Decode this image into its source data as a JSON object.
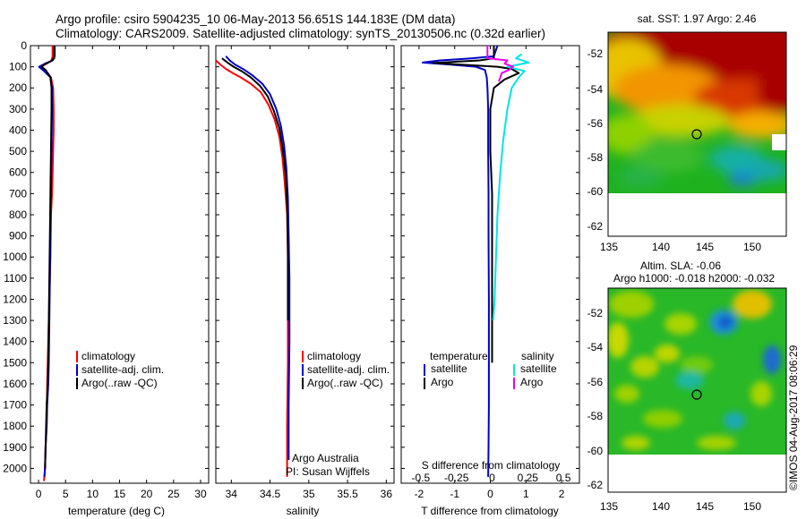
{
  "header": {
    "title_line1": "Argo profile: csiro 5904235_10 06-May-2013 56.651S 144.183E (DM data)",
    "title_line2": "Climatology: CARS2009. Satellite-adjusted climatology: synTS_20130506.nc (0.32d earlier)"
  },
  "chart_data": [
    {
      "id": "temperature",
      "type": "line",
      "xlabel": "temperature (deg C)",
      "ylabel": "",
      "xlim": [
        -1.5,
        31.5
      ],
      "ylim": [
        2070,
        0
      ],
      "xticks": [
        0,
        5,
        10,
        15,
        20,
        25,
        30
      ],
      "yticks": [
        0,
        100,
        200,
        300,
        400,
        500,
        600,
        700,
        800,
        900,
        1000,
        1100,
        1200,
        1300,
        1400,
        1500,
        1600,
        1700,
        1800,
        1900,
        2000
      ],
      "series": [
        {
          "name": "climatology",
          "color": "#ff0000",
          "x": [
            2.6,
            2.6,
            2.4,
            1.5,
            0.4,
            1.4,
            2.3,
            2.7,
            2.8,
            2.8,
            2.7,
            2.6,
            2.5,
            2.3,
            2.2,
            2.0,
            1.8,
            1.6,
            1.5,
            1.3,
            1.2,
            1.0
          ],
          "y": [
            0,
            50,
            70,
            85,
            100,
            120,
            150,
            200,
            300,
            400,
            500,
            600,
            700,
            800,
            1000,
            1200,
            1400,
            1600,
            1800,
            1900,
            2000,
            2060
          ]
        },
        {
          "name": "satellite-adj. clim.",
          "color": "#0000cc",
          "x": [
            3.0,
            3.0,
            2.6,
            1.2,
            0.1,
            1.0,
            2.2,
            2.5,
            2.5,
            2.4,
            2.3,
            2.2,
            2.1,
            2.0,
            1.9,
            1.8,
            1.6,
            1.5,
            1.3,
            1.2,
            1.1
          ],
          "y": [
            0,
            50,
            70,
            85,
            100,
            120,
            150,
            200,
            300,
            500,
            700,
            900,
            1100,
            1300,
            1500,
            1600,
            1700,
            1800,
            1900,
            2000,
            2040
          ]
        },
        {
          "name": "Argo(..raw -QC)",
          "color": "#000000",
          "x": [
            2.9,
            2.9,
            2.2,
            1.0,
            0.6,
            1.3,
            2.2,
            2.4,
            2.4,
            2.3,
            2.2,
            2.1,
            2.0,
            1.9,
            1.8,
            1.7,
            1.5,
            1.4,
            1.3,
            1.2
          ],
          "y": [
            0,
            60,
            75,
            90,
            100,
            115,
            150,
            200,
            300,
            500,
            700,
            900,
            1100,
            1300,
            1500,
            1600,
            1700,
            1800,
            1900,
            2000
          ]
        }
      ]
    },
    {
      "id": "salinity",
      "type": "line",
      "xlabel": "salinity",
      "ylabel": "",
      "xlim": [
        33.8,
        36.1
      ],
      "ylim": [
        2070,
        0
      ],
      "xticks": [
        34,
        34.5,
        35,
        35.5,
        36
      ],
      "xticklabels": [
        "34",
        "34.5",
        "35",
        "35.5",
        "36"
      ],
      "series": [
        {
          "name": "climatology",
          "color": "#ff0000",
          "x": [
            33.8,
            33.86,
            33.93,
            34.02,
            34.12,
            34.25,
            34.38,
            34.48,
            34.56,
            34.62,
            34.66,
            34.69,
            34.72,
            34.73,
            34.73,
            34.73,
            34.72,
            34.72
          ],
          "y": [
            70,
            90,
            110,
            130,
            150,
            180,
            220,
            280,
            350,
            430,
            530,
            650,
            800,
            1000,
            1200,
            1500,
            1800,
            2040
          ]
        },
        {
          "name": "satellite-adj. clim.",
          "color": "#0000cc",
          "x": [
            33.93,
            33.98,
            34.05,
            34.15,
            34.27,
            34.4,
            34.5,
            34.58,
            34.64,
            34.68,
            34.71,
            34.73,
            34.74,
            34.75,
            34.75,
            34.74,
            34.74
          ],
          "y": [
            50,
            70,
            90,
            110,
            140,
            180,
            230,
            300,
            380,
            470,
            580,
            720,
            900,
            1100,
            1400,
            1700,
            1960
          ]
        },
        {
          "name": "Argo(..raw -QC)",
          "color": "#000000",
          "x": [
            33.88,
            33.95,
            34.03,
            34.13,
            34.25,
            34.37,
            34.47,
            34.55,
            34.62,
            34.66,
            34.7,
            34.72,
            34.73,
            34.73,
            34.73
          ],
          "y": [
            60,
            80,
            100,
            120,
            150,
            190,
            240,
            310,
            390,
            480,
            600,
            750,
            950,
            1150,
            1300
          ]
        }
      ]
    },
    {
      "id": "differences",
      "type": "line",
      "title_top": "S difference from climatology",
      "xlabel": "T difference from climatology",
      "xlim": [
        -2.5,
        2.5
      ],
      "ylim": [
        2070,
        0
      ],
      "xticks": [
        -2,
        -1,
        0,
        1,
        2
      ],
      "xticklabels": [
        "-2",
        "-1",
        "0",
        "1",
        "2"
      ],
      "xticks_top": [
        -0.5,
        -0.25,
        0,
        0.25,
        0.5
      ],
      "xticklabels_top": [
        "-0.5",
        "-0.25",
        "0",
        "0.25",
        "0.5"
      ],
      "series": [
        {
          "name": "temperature satellite",
          "color": "#0000cc",
          "var": "T",
          "x": [
            0.2,
            0.1,
            -0.5,
            -1.4,
            -1.9,
            -1.1,
            -0.4,
            -0.15,
            -0.1,
            -0.08,
            -0.06,
            -0.06,
            -0.05,
            -0.05,
            -0.04,
            -0.04,
            -0.04,
            -0.05,
            -0.06
          ],
          "y": [
            0,
            50,
            60,
            70,
            80,
            90,
            100,
            115,
            150,
            200,
            300,
            500,
            700,
            900,
            1200,
            1500,
            1700,
            1900,
            2040
          ]
        },
        {
          "name": "temperature Argo",
          "color": "#000000",
          "var": "T",
          "x": [
            0.1,
            0.1,
            -0.3,
            -1.6,
            -0.8,
            0.2,
            0.6,
            0.8,
            0.4,
            0.1,
            0.0,
            0.0,
            0.05,
            0.05,
            0.05,
            0.05,
            0.05
          ],
          "y": [
            0,
            60,
            70,
            82,
            90,
            100,
            110,
            130,
            160,
            200,
            300,
            500,
            700,
            900,
            1100,
            1300,
            1500
          ]
        },
        {
          "name": "salinity satellite",
          "color": "#00e5e5",
          "var": "S",
          "x": [
            0.22,
            0.18,
            0.27,
            0.12,
            0.24,
            0.2,
            0.15,
            0.12,
            0.09,
            0.07,
            0.05,
            0.04,
            0.03,
            0.02
          ],
          "y": [
            40,
            60,
            80,
            100,
            120,
            150,
            200,
            300,
            450,
            600,
            800,
            1000,
            1200,
            1300
          ]
        },
        {
          "name": "salinity Argo",
          "color": "#ee00ee",
          "var": "S",
          "x": [
            -0.02,
            -0.02,
            0.12,
            0.1,
            0.16,
            0.13,
            0.08,
            0.07,
            0.06
          ],
          "y": [
            0,
            60,
            70,
            85,
            100,
            115,
            130,
            150,
            170
          ]
        }
      ]
    }
  ],
  "legends": {
    "temp": [
      "climatology",
      "satellite-adj. clim.",
      "Argo(..raw -QC)"
    ],
    "sal": [
      "climatology",
      "satellite-adj. clim.",
      "Argo(..raw -QC)"
    ],
    "diff_headers": [
      "temperature",
      "salinity"
    ],
    "diff_items": [
      "satellite",
      "Argo",
      "satellite",
      "Argo"
    ]
  },
  "annotations": {
    "argo_australia": "Argo Australia",
    "pi": "PI: Susan Wijffels"
  },
  "maps": {
    "sst_title": "sat. SST: 1.97  Argo: 2.46",
    "sla_title1": "Altim. SLA: -0.06",
    "sla_title2": "Argo h1000: -0.018  h2000: -0.032",
    "lat_ticks": [
      "-52",
      "-54",
      "-56",
      "-58",
      "-60",
      "-62"
    ],
    "lon_ticks": [
      "135",
      "140",
      "145",
      "150"
    ],
    "footer": "©IMOS 04-Aug-2017 08:06:29"
  }
}
